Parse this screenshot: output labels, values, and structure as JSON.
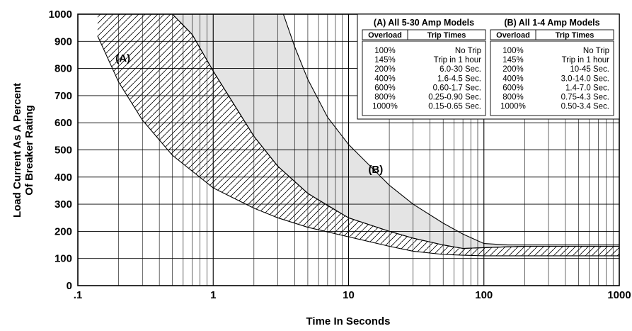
{
  "chart_data": {
    "type": "area",
    "xlabel": "Time In Seconds",
    "ylabel_lines": [
      "Load Current As A Percent",
      "Of Breaker Rating"
    ],
    "x_scale": "log",
    "xlim": [
      0.1,
      1000
    ],
    "ylim": [
      0,
      1000
    ],
    "xticks": [
      0.1,
      1,
      10,
      100,
      1000
    ],
    "xtick_labels": [
      ".1",
      "1",
      "10",
      "100",
      "1000"
    ],
    "yticks": [
      0,
      100,
      200,
      300,
      400,
      500,
      600,
      700,
      800,
      900,
      1000
    ],
    "ytick_labels": [
      "0",
      "100",
      "200",
      "300",
      "400",
      "500",
      "600",
      "700",
      "800",
      "900",
      "1000"
    ],
    "grid": true,
    "series": [
      {
        "name": "(A)",
        "fill": "hatched",
        "min_time": {
          "x": [
            0.14,
            0.2,
            0.3,
            0.5,
            1,
            2,
            3,
            5,
            10,
            20,
            30,
            50,
            70,
            100,
            150,
            200,
            500,
            1000
          ],
          "y": [
            920,
            750,
            610,
            480,
            360,
            285,
            250,
            215,
            180,
            145,
            127,
            115,
            112,
            110,
            110,
            110,
            110,
            110
          ]
        },
        "max_time": {
          "x": [
            0.14,
            0.5,
            0.7,
            1,
            2,
            3,
            5,
            7,
            10,
            20,
            30,
            50,
            70,
            100,
            150,
            200,
            500,
            1000
          ],
          "y": [
            1000,
            1000,
            925,
            790,
            550,
            440,
            340,
            295,
            250,
            200,
            175,
            150,
            137,
            140,
            143,
            145,
            145,
            145
          ]
        }
      },
      {
        "name": "(B)",
        "fill": "shaded",
        "min_time": {
          "x": [
            0.5,
            0.7,
            1,
            2,
            3,
            5,
            10,
            20,
            30,
            50,
            70,
            100,
            150,
            200,
            500,
            1000
          ],
          "y": [
            1000,
            925,
            790,
            550,
            440,
            340,
            250,
            200,
            175,
            150,
            137,
            140,
            143,
            145,
            145,
            145
          ]
        },
        "max_time": {
          "x": [
            3.3,
            4,
            5,
            7,
            10,
            20,
            30,
            50,
            70,
            100,
            150,
            200,
            500,
            1000
          ],
          "y": [
            1000,
            880,
            760,
            620,
            520,
            370,
            300,
            230,
            190,
            155,
            150,
            150,
            150,
            150
          ]
        }
      }
    ],
    "annotations": [
      {
        "text": "(A)",
        "x": 0.19,
        "y": 825
      },
      {
        "text": "(B)",
        "x": 14,
        "y": 415
      }
    ],
    "tables": [
      {
        "title": "(A) All 5-30 Amp Models",
        "headers": [
          "Overload",
          "Trip Times"
        ],
        "rows": [
          [
            "100%",
            "No Trip"
          ],
          [
            "145%",
            "Trip in 1 hour"
          ],
          [
            "200%",
            "6.0-30 Sec."
          ],
          [
            "400%",
            "1.6-4.5 Sec."
          ],
          [
            "600%",
            "0.60-1.7 Sec."
          ],
          [
            "800%",
            "0.25-0.90 Sec."
          ],
          [
            "1000%",
            "0.15-0.65 Sec."
          ]
        ]
      },
      {
        "title": "(B) All 1-4 Amp Models",
        "headers": [
          "Overload",
          "Trip Times"
        ],
        "rows": [
          [
            "100%",
            "No Trip"
          ],
          [
            "145%",
            "Trip in 1 hour"
          ],
          [
            "200%",
            "10-45 Sec."
          ],
          [
            "400%",
            "3.0-14.0 Sec."
          ],
          [
            "600%",
            "1.4-7.0 Sec."
          ],
          [
            "800%",
            "0.75-4.3 Sec."
          ],
          [
            "1000%",
            "0.50-3.4 Sec."
          ]
        ]
      }
    ],
    "colors": {
      "grid": "#000000",
      "band_b_fill": "#e4e4e4",
      "hatch": "#000000",
      "background": "#ffffff"
    }
  }
}
